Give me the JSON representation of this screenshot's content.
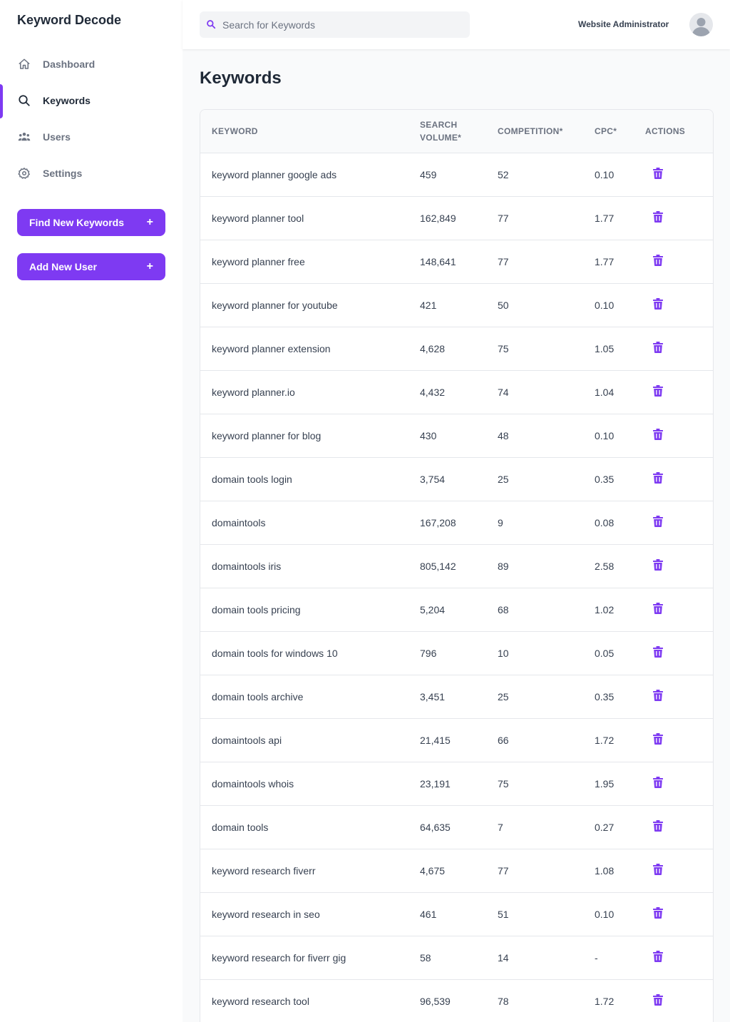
{
  "app": {
    "brand": "Keyword Decode"
  },
  "sidebar": {
    "items": [
      {
        "label": "Dashboard",
        "icon": "home-icon",
        "active": false
      },
      {
        "label": "Keywords",
        "icon": "search-icon",
        "active": true
      },
      {
        "label": "Users",
        "icon": "users-icon",
        "active": false
      },
      {
        "label": "Settings",
        "icon": "gear-icon",
        "active": false
      }
    ],
    "find_keywords_button": "Find New Keywords",
    "add_user_button": "Add New User",
    "plus": "+"
  },
  "header": {
    "search_placeholder": "Search for Keywords",
    "user_name": "Website Administrator"
  },
  "main": {
    "title": "Keywords",
    "columns": [
      "KEYWORD",
      "SEARCH VOLUME*",
      "COMPETITION*",
      "CPC*",
      "ACTIONS"
    ],
    "rows": [
      [
        "keyword planner google ads",
        "459",
        "52",
        "0.10"
      ],
      [
        "keyword planner tool",
        "162,849",
        "77",
        "1.77"
      ],
      [
        "keyword planner free",
        "148,641",
        "77",
        "1.77"
      ],
      [
        "keyword planner for youtube",
        "421",
        "50",
        "0.10"
      ],
      [
        "keyword planner extension",
        "4,628",
        "75",
        "1.05"
      ],
      [
        "keyword planner.io",
        "4,432",
        "74",
        "1.04"
      ],
      [
        "keyword planner for blog",
        "430",
        "48",
        "0.10"
      ],
      [
        "domain tools login",
        "3,754",
        "25",
        "0.35"
      ],
      [
        "domaintools",
        "167,208",
        "9",
        "0.08"
      ],
      [
        "domaintools iris",
        "805,142",
        "89",
        "2.58"
      ],
      [
        "domain tools pricing",
        "5,204",
        "68",
        "1.02"
      ],
      [
        "domain tools for windows 10",
        "796",
        "10",
        "0.05"
      ],
      [
        "domain tools archive",
        "3,451",
        "25",
        "0.35"
      ],
      [
        "domaintools api",
        "21,415",
        "66",
        "1.72"
      ],
      [
        "domaintools whois",
        "23,191",
        "75",
        "1.95"
      ],
      [
        "domain tools",
        "64,635",
        "7",
        "0.27"
      ],
      [
        "keyword research fiverr",
        "4,675",
        "77",
        "1.08"
      ],
      [
        "keyword research in seo",
        "461",
        "51",
        "0.10"
      ],
      [
        "keyword research for fiverr gig",
        "58",
        "14",
        "-"
      ],
      [
        "keyword research tool",
        "96,539",
        "78",
        "1.72"
      ]
    ],
    "row_action_icon": "trash-icon"
  },
  "colors": {
    "accent": "#7e3af2"
  }
}
